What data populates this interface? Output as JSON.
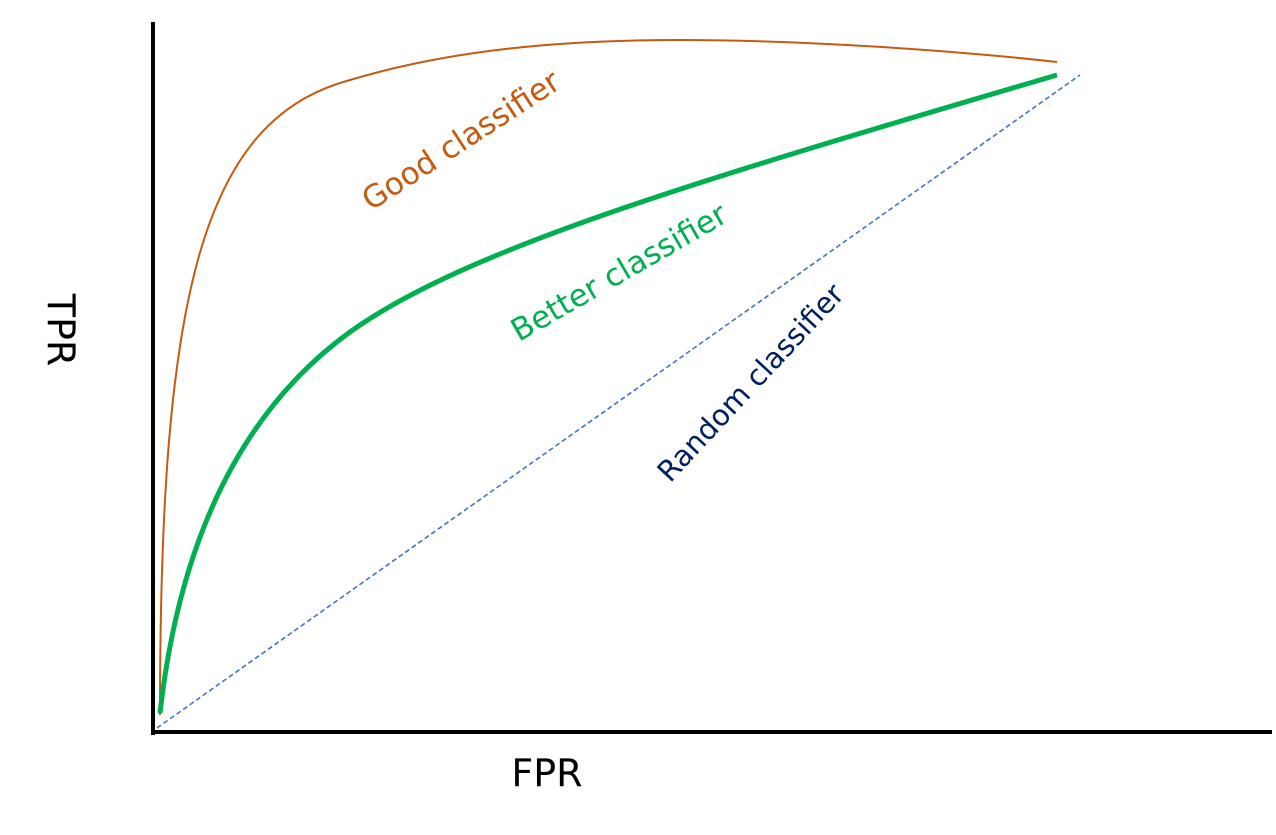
{
  "axes": {
    "y_label": "TPR",
    "x_label": "FPR"
  },
  "curves": [
    {
      "label": "Good classifier"
    },
    {
      "label": "Better classifier"
    },
    {
      "label": "Random classifier"
    }
  ]
}
